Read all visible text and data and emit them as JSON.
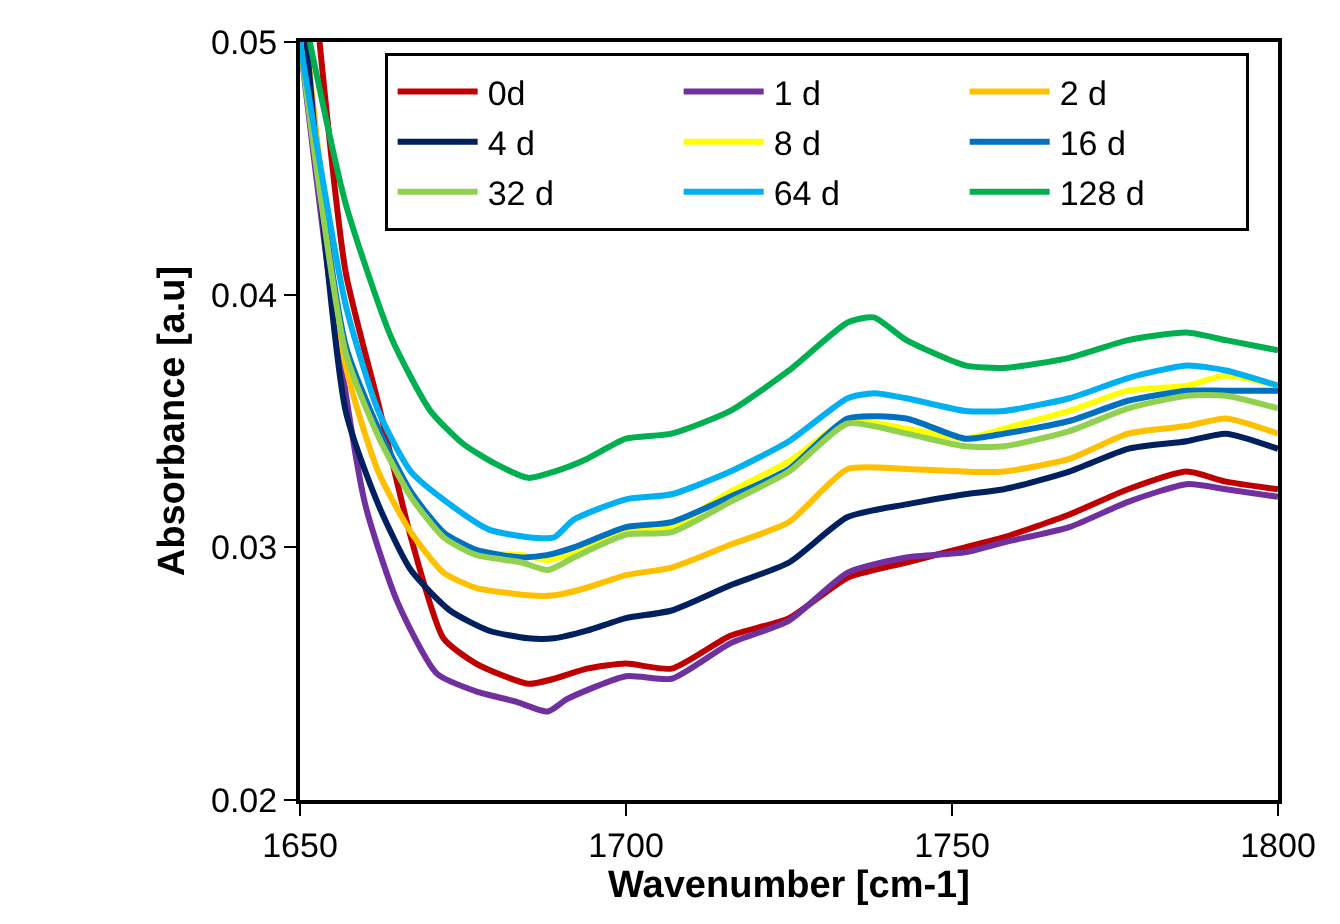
{
  "chart_data": {
    "type": "line",
    "xlabel": "Wavenumber [cm-1]",
    "ylabel": "Absorbance [a.u]",
    "xlim": [
      1650,
      1800
    ],
    "xticks": [
      1650,
      1700,
      1750,
      1800
    ],
    "ylim": [
      0.02,
      0.05
    ],
    "yticks": [
      0.02,
      0.03,
      0.04,
      0.05
    ],
    "legend": "top right",
    "marker": "none",
    "line_style": "solid",
    "series": [
      {
        "name": "0d",
        "color": "#c00000",
        "x": [
          1653,
          1657,
          1662,
          1667,
          1672,
          1677,
          1685,
          1689,
          1694,
          1700,
          1707,
          1716,
          1725,
          1734,
          1743,
          1752,
          1758,
          1768,
          1777,
          1786,
          1792,
          1800
        ],
        "values": [
          0.05,
          0.0409,
          0.0357,
          0.0304,
          0.0264,
          0.0254,
          0.0246,
          0.0248,
          0.0252,
          0.0254,
          0.0252,
          0.0265,
          0.0272,
          0.0288,
          0.0294,
          0.03,
          0.0304,
          0.0313,
          0.0323,
          0.033,
          0.0326,
          0.0323
        ]
      },
      {
        "name": "1 d",
        "color": "#7030a0",
        "x": [
          1650,
          1655,
          1660,
          1665,
          1671,
          1677,
          1683,
          1688,
          1691,
          1700,
          1707,
          1716,
          1725,
          1734,
          1743,
          1752,
          1758,
          1768,
          1777,
          1786,
          1792,
          1800
        ],
        "values": [
          0.05,
          0.0396,
          0.0317,
          0.0278,
          0.025,
          0.0243,
          0.0239,
          0.0235,
          0.024,
          0.0249,
          0.0248,
          0.0262,
          0.0271,
          0.029,
          0.0296,
          0.0298,
          0.0302,
          0.0308,
          0.0318,
          0.0325,
          0.0323,
          0.032
        ]
      },
      {
        "name": "2 d",
        "color": "#ffc000",
        "x": [
          1651,
          1657,
          1662,
          1667,
          1672,
          1677,
          1685,
          1689,
          1694,
          1700,
          1707,
          1716,
          1725,
          1734,
          1743,
          1752,
          1758,
          1768,
          1777,
          1786,
          1792,
          1800
        ],
        "values": [
          0.05,
          0.0372,
          0.033,
          0.0306,
          0.029,
          0.0284,
          0.0281,
          0.0281,
          0.0284,
          0.0289,
          0.0292,
          0.0301,
          0.031,
          0.0331,
          0.0331,
          0.033,
          0.033,
          0.0335,
          0.0345,
          0.0348,
          0.0351,
          0.0345
        ]
      },
      {
        "name": "4 d",
        "color": "#002060",
        "x": [
          1651,
          1657,
          1662,
          1667,
          1673,
          1679,
          1685,
          1689,
          1694,
          1700,
          1707,
          1716,
          1725,
          1734,
          1743,
          1752,
          1758,
          1768,
          1777,
          1786,
          1792,
          1800
        ],
        "values": [
          0.05,
          0.0354,
          0.0317,
          0.0291,
          0.0275,
          0.0267,
          0.0264,
          0.0264,
          0.0267,
          0.0272,
          0.0275,
          0.0285,
          0.0294,
          0.0312,
          0.0317,
          0.0321,
          0.0323,
          0.033,
          0.0339,
          0.0342,
          0.0345,
          0.0339
        ]
      },
      {
        "name": "8 d",
        "color": "#ffff00",
        "x": [
          1672,
          1677,
          1684,
          1688,
          1692,
          1700,
          1707,
          1716,
          1725,
          1734,
          1743,
          1752,
          1758,
          1768,
          1777,
          1786,
          1792,
          1800
        ],
        "values": [
          0.0305,
          0.0298,
          0.0297,
          0.0295,
          0.0298,
          0.0306,
          0.0308,
          0.0322,
          0.0334,
          0.035,
          0.0347,
          0.0343,
          0.0347,
          0.0354,
          0.0362,
          0.0364,
          0.0368,
          0.0364
        ]
      },
      {
        "name": "16 d",
        "color": "#0070c0",
        "x": [
          1650,
          1657,
          1662,
          1667,
          1672,
          1677,
          1684,
          1688,
          1692,
          1700,
          1707,
          1716,
          1725,
          1734,
          1743,
          1752,
          1758,
          1768,
          1777,
          1786,
          1792,
          1800
        ],
        "values": [
          0.05,
          0.038,
          0.0347,
          0.0322,
          0.0306,
          0.0299,
          0.0296,
          0.0297,
          0.03,
          0.0308,
          0.031,
          0.032,
          0.0331,
          0.0351,
          0.0351,
          0.0343,
          0.0345,
          0.035,
          0.0358,
          0.0362,
          0.0362,
          0.0362
        ]
      },
      {
        "name": "32 d",
        "color": "#92d050",
        "x": [
          1650,
          1657,
          1662,
          1667,
          1672,
          1677,
          1684,
          1688,
          1692,
          1700,
          1707,
          1716,
          1725,
          1734,
          1743,
          1752,
          1758,
          1768,
          1777,
          1786,
          1792,
          1800
        ],
        "values": [
          0.05,
          0.0377,
          0.0344,
          0.032,
          0.0304,
          0.0297,
          0.0294,
          0.0291,
          0.0296,
          0.0305,
          0.0306,
          0.0318,
          0.033,
          0.0349,
          0.0345,
          0.034,
          0.034,
          0.0346,
          0.0355,
          0.036,
          0.036,
          0.0355
        ]
      },
      {
        "name": "64 d",
        "color": "#00b0f0",
        "x": [
          1650,
          1657,
          1662,
          1667,
          1673,
          1679,
          1685,
          1689,
          1692,
          1700,
          1707,
          1716,
          1725,
          1734,
          1738,
          1743,
          1752,
          1758,
          1768,
          1777,
          1786,
          1792,
          1800
        ],
        "values": [
          0.05,
          0.0396,
          0.0354,
          0.033,
          0.0317,
          0.0307,
          0.0304,
          0.0304,
          0.0311,
          0.0319,
          0.0321,
          0.033,
          0.0342,
          0.0359,
          0.0361,
          0.0359,
          0.0354,
          0.0354,
          0.0359,
          0.0367,
          0.0372,
          0.037,
          0.0364
        ]
      },
      {
        "name": "128 d",
        "color": "#00b050",
        "x": [
          1651.5,
          1657,
          1664,
          1670,
          1675,
          1680,
          1685,
          1689,
          1694,
          1700,
          1707,
          1716,
          1725,
          1734,
          1738,
          1743,
          1752,
          1758,
          1768,
          1777,
          1786,
          1792,
          1800
        ],
        "values": [
          0.05,
          0.0436,
          0.0383,
          0.0354,
          0.0341,
          0.0333,
          0.03275,
          0.033,
          0.0335,
          0.0343,
          0.0345,
          0.0354,
          0.037,
          0.0389,
          0.0391,
          0.0382,
          0.0372,
          0.0371,
          0.0375,
          0.0382,
          0.0385,
          0.0382,
          0.0378
        ]
      }
    ]
  }
}
